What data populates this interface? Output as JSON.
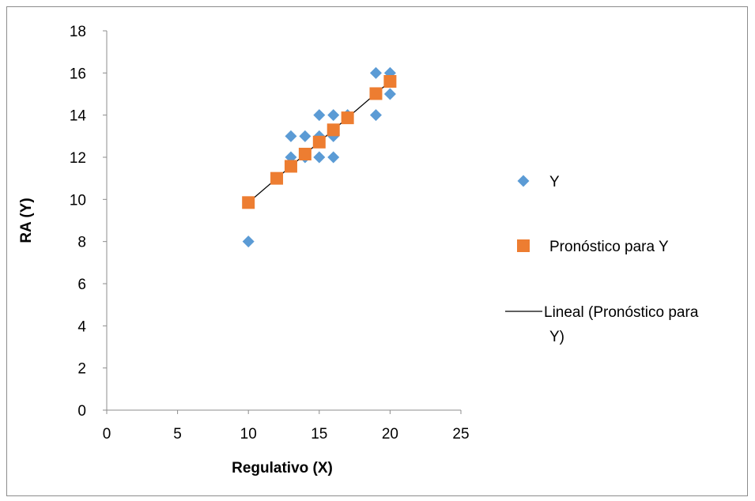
{
  "chart_data": {
    "type": "scatter",
    "xlabel": "Regulativo (X)",
    "ylabel": "RA (Y)",
    "xlim": [
      0,
      25
    ],
    "ylim": [
      0,
      18
    ],
    "x_ticks": [
      0,
      5,
      10,
      15,
      20,
      25
    ],
    "y_ticks": [
      0,
      2,
      4,
      6,
      8,
      10,
      12,
      14,
      16,
      18
    ],
    "grid": false,
    "legend_position": "right",
    "series": [
      {
        "name": "Y",
        "marker": "diamond",
        "color": "#5B9BD5",
        "points": [
          {
            "x": 10,
            "y": 8
          },
          {
            "x": 13,
            "y": 12
          },
          {
            "x": 13,
            "y": 13
          },
          {
            "x": 14,
            "y": 12
          },
          {
            "x": 14,
            "y": 13
          },
          {
            "x": 15,
            "y": 12
          },
          {
            "x": 15,
            "y": 13
          },
          {
            "x": 15,
            "y": 14
          },
          {
            "x": 16,
            "y": 12
          },
          {
            "x": 16,
            "y": 13
          },
          {
            "x": 16,
            "y": 14
          },
          {
            "x": 17,
            "y": 14
          },
          {
            "x": 19,
            "y": 14
          },
          {
            "x": 19,
            "y": 16
          },
          {
            "x": 20,
            "y": 15
          },
          {
            "x": 20,
            "y": 16
          }
        ]
      },
      {
        "name": "Pronóstico para Y",
        "marker": "square",
        "color": "#ED7D31",
        "points": [
          {
            "x": 10,
            "y": 9.85
          },
          {
            "x": 12,
            "y": 11.0
          },
          {
            "x": 13,
            "y": 11.57
          },
          {
            "x": 14,
            "y": 12.15
          },
          {
            "x": 15,
            "y": 12.72
          },
          {
            "x": 16,
            "y": 13.3
          },
          {
            "x": 17,
            "y": 13.87
          },
          {
            "x": 19,
            "y": 15.02
          },
          {
            "x": 20,
            "y": 15.6
          }
        ]
      }
    ],
    "trendline": {
      "name": "Lineal (Pronóstico para Y)",
      "type": "linear",
      "color": "#000000",
      "x": [
        10,
        20
      ],
      "y": [
        9.85,
        15.6
      ]
    },
    "legend": [
      {
        "label": "Y",
        "symbol": "diamond",
        "color": "#5B9BD5"
      },
      {
        "label": "Pronóstico para Y",
        "symbol": "square",
        "color": "#ED7D31"
      },
      {
        "label_lines": [
          "Lineal (Pronóstico para",
          "Y)"
        ],
        "symbol": "line",
        "color": "#000000"
      }
    ]
  }
}
